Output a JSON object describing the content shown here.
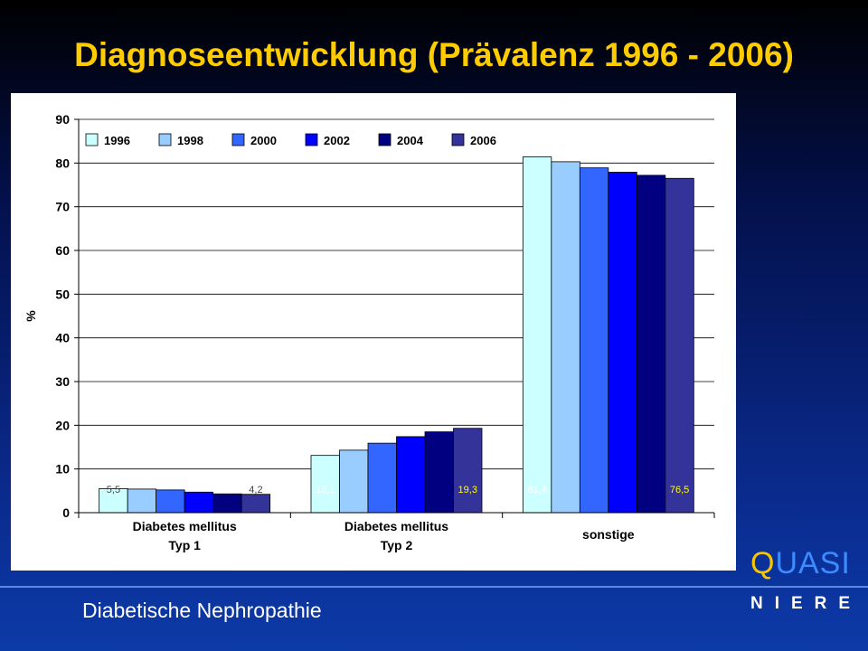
{
  "slide": {
    "title": "Diagnoseentwicklung (Prävalenz 1996 - 2006)",
    "footer": "Diabetische Nephropathie"
  },
  "logo": {
    "main_prefix": "Q",
    "main_middle": "UAS",
    "main_suffix": "I",
    "sub": "NIERE"
  },
  "colors": {
    "title": "#ffcc00",
    "logo_accent": "#f7c600",
    "logo_primary": "#3d8bff"
  },
  "chart_data": {
    "type": "bar",
    "title": "",
    "xlabel": "",
    "ylabel": "%",
    "ylim": [
      0,
      90
    ],
    "yticks": [
      0,
      10,
      20,
      30,
      40,
      50,
      60,
      70,
      80,
      90
    ],
    "grid": true,
    "legend_position": "top-left",
    "categories": [
      [
        "Diabetes mellitus",
        "Typ 1"
      ],
      [
        "Diabetes mellitus",
        "Typ 2"
      ],
      [
        "sonstige"
      ]
    ],
    "series": [
      {
        "name": "1996",
        "color": "#ccffff",
        "values": [
          5.5,
          13.1,
          81.4
        ]
      },
      {
        "name": "1998",
        "color": "#99ccff",
        "values": [
          5.4,
          14.3,
          80.3
        ]
      },
      {
        "name": "2000",
        "color": "#3366ff",
        "values": [
          5.2,
          15.9,
          78.9
        ]
      },
      {
        "name": "2002",
        "color": "#0000ff",
        "values": [
          4.7,
          17.4,
          77.9
        ]
      },
      {
        "name": "2004",
        "color": "#000080",
        "values": [
          4.3,
          18.5,
          77.2
        ]
      },
      {
        "name": "2006",
        "color": "#333399",
        "values": [
          4.2,
          19.3,
          76.5
        ]
      }
    ],
    "data_labels": [
      {
        "category": 0,
        "series": 0,
        "text": "5,5",
        "color": "#404040"
      },
      {
        "category": 0,
        "series": 5,
        "text": "4,2",
        "color": "#404040"
      },
      {
        "category": 1,
        "series": 0,
        "text": "13,1",
        "color": "#ffffff"
      },
      {
        "category": 1,
        "series": 5,
        "text": "19,3",
        "color": "#ffff00"
      },
      {
        "category": 2,
        "series": 0,
        "text": "81,4",
        "color": "#ffffff"
      },
      {
        "category": 2,
        "series": 5,
        "text": "76,5",
        "color": "#ffff00"
      }
    ]
  }
}
